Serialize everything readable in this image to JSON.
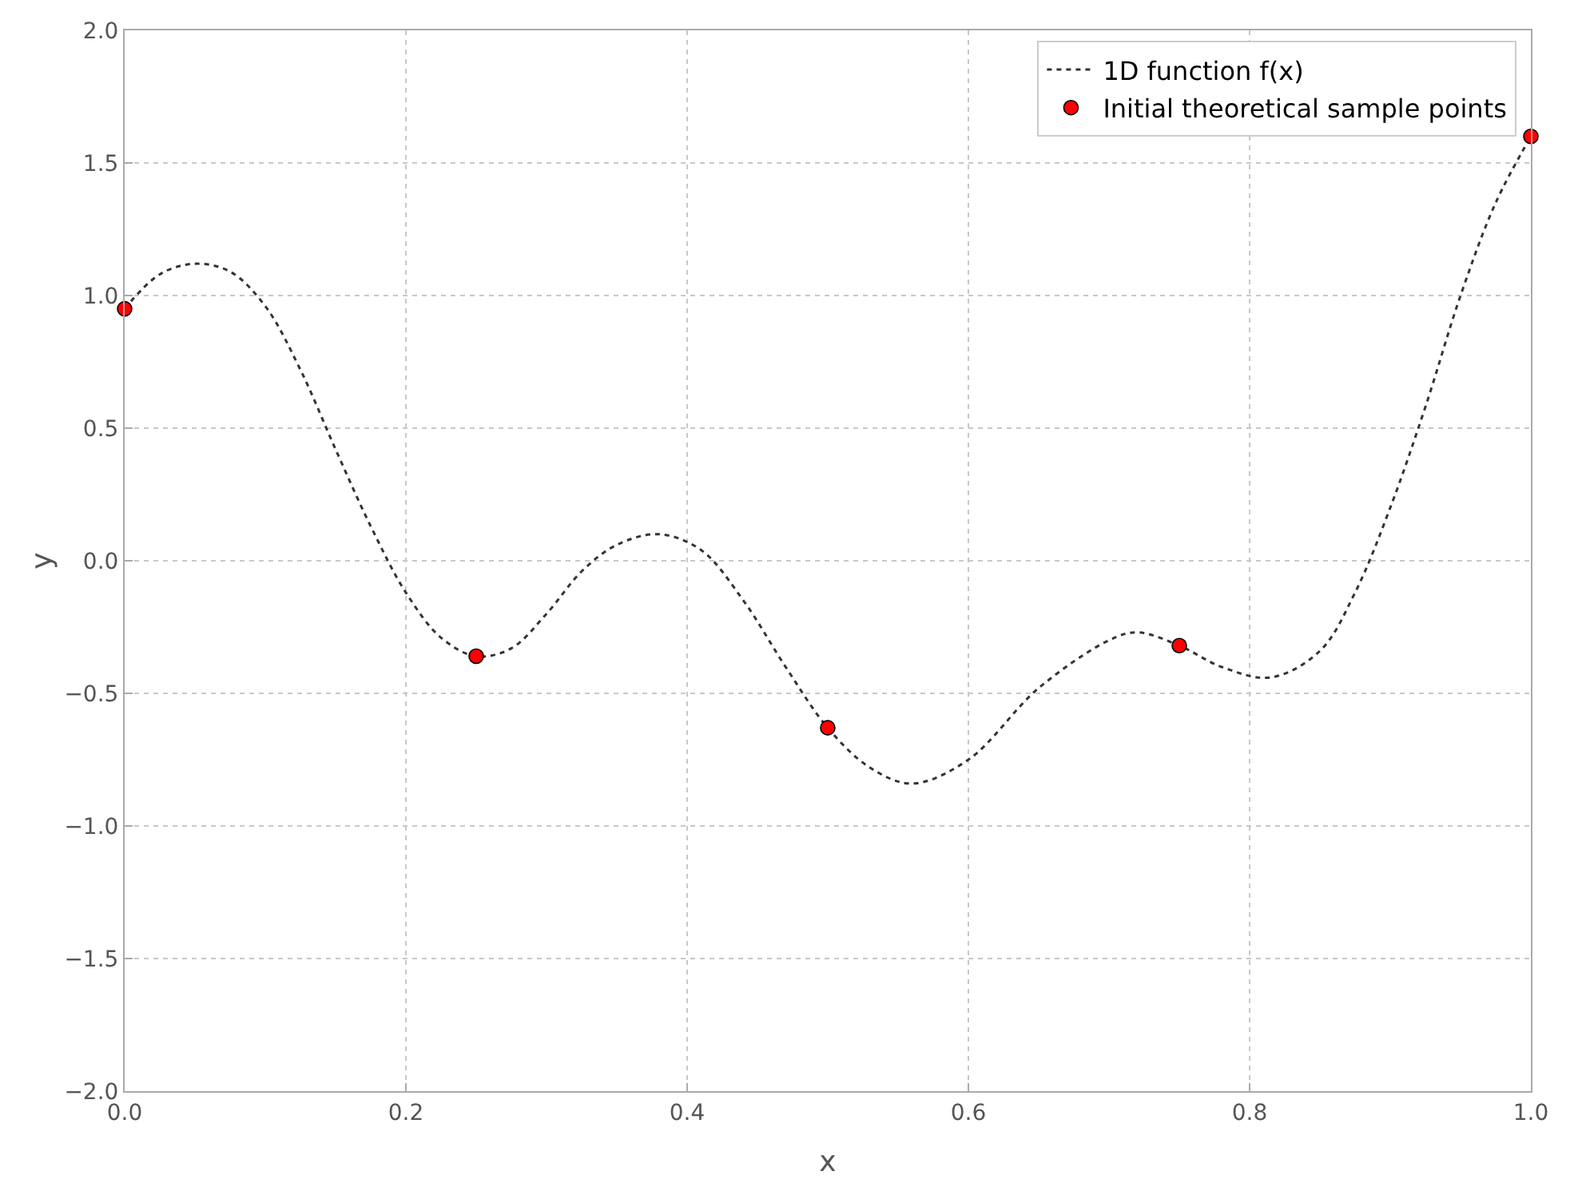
{
  "chart_data": {
    "type": "line",
    "xlabel": "x",
    "ylabel": "y",
    "xlim": [
      0,
      1
    ],
    "ylim": [
      -2,
      2
    ],
    "xticks": [
      {
        "value": 0,
        "label": "0.0"
      },
      {
        "value": 0.2,
        "label": "0.2"
      },
      {
        "value": 0.4,
        "label": "0.4"
      },
      {
        "value": 0.6,
        "label": "0.6"
      },
      {
        "value": 0.8,
        "label": "0.8"
      },
      {
        "value": 1,
        "label": "1.0"
      }
    ],
    "yticks": [
      {
        "value": -2,
        "label": "−2.0"
      },
      {
        "value": -1.5,
        "label": "−1.5"
      },
      {
        "value": -1,
        "label": "−1.0"
      },
      {
        "value": -0.5,
        "label": "−0.5"
      },
      {
        "value": 0,
        "label": "0.0"
      },
      {
        "value": 0.5,
        "label": "0.5"
      },
      {
        "value": 1,
        "label": "1.0"
      },
      {
        "value": 1.5,
        "label": "1.5"
      },
      {
        "value": 2,
        "label": "2.0"
      }
    ],
    "grid": true,
    "legend": "top right",
    "series": [
      {
        "name": "1D function f(x)",
        "color": "#333333",
        "marker": "none",
        "line_style": "dotted",
        "x": [
          0,
          0.025,
          0.05,
          0.075,
          0.1,
          0.125,
          0.15,
          0.175,
          0.2,
          0.225,
          0.25,
          0.275,
          0.3,
          0.325,
          0.35,
          0.38,
          0.41,
          0.44,
          0.47,
          0.5,
          0.53,
          0.56,
          0.6,
          0.65,
          0.7,
          0.72,
          0.75,
          0.78,
          0.815,
          0.85,
          0.875,
          0.9,
          0.925,
          0.95,
          0.975,
          1
        ],
        "values": [
          0.95,
          1.08,
          1.12,
          1.09,
          0.96,
          0.72,
          0.42,
          0.13,
          -0.12,
          -0.29,
          -0.36,
          -0.33,
          -0.2,
          -0.04,
          0.06,
          0.1,
          0.04,
          -0.15,
          -0.4,
          -0.63,
          -0.78,
          -0.84,
          -0.75,
          -0.48,
          -0.3,
          -0.27,
          -0.32,
          -0.4,
          -0.44,
          -0.34,
          -0.12,
          0.2,
          0.58,
          1.0,
          1.35,
          1.6
        ]
      },
      {
        "name": "Initial theoretical sample points",
        "type": "scatter",
        "color": "#ff0000",
        "marker": "circle",
        "x": [
          0,
          0.25,
          0.5,
          0.75,
          1
        ],
        "values": [
          0.95,
          -0.36,
          -0.63,
          -0.32,
          1.6
        ]
      }
    ]
  }
}
